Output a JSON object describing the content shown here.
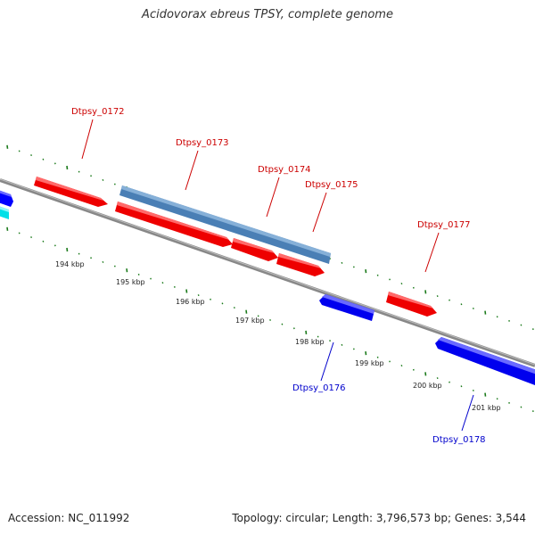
{
  "title": "Acidovorax ebreus TPSY, complete genome",
  "footer": {
    "accession": "Accession: NC_011992",
    "summary": "Topology: circular; Length: 3,796,573 bp; Genes: 3,544"
  },
  "colors": {
    "forward_gene": "#ff0000",
    "reverse_gene": "#0000ff",
    "highlight_gene": "#4a7fb5",
    "rna_gene": "#00e0e8",
    "backbone": "#888888",
    "ticks": "#1a7a1a",
    "forward_label": "#cc0000",
    "reverse_label": "#0000cc"
  },
  "kbp_ticks": [
    "194 kbp",
    "195 kbp",
    "196 kbp",
    "197 kbp",
    "198 kbp",
    "199 kbp",
    "200 kbp",
    "201 kbp"
  ],
  "gene_labels": [
    {
      "name": "Dtpsy_0172",
      "strand": "forward"
    },
    {
      "name": "Dtpsy_0173",
      "strand": "forward"
    },
    {
      "name": "Dtpsy_0174",
      "strand": "forward"
    },
    {
      "name": "Dtpsy_0175",
      "strand": "forward"
    },
    {
      "name": "Dtpsy_0177",
      "strand": "forward"
    },
    {
      "name": "Dtpsy_0176",
      "strand": "reverse"
    },
    {
      "name": "Dtpsy_0178",
      "strand": "reverse"
    }
  ]
}
